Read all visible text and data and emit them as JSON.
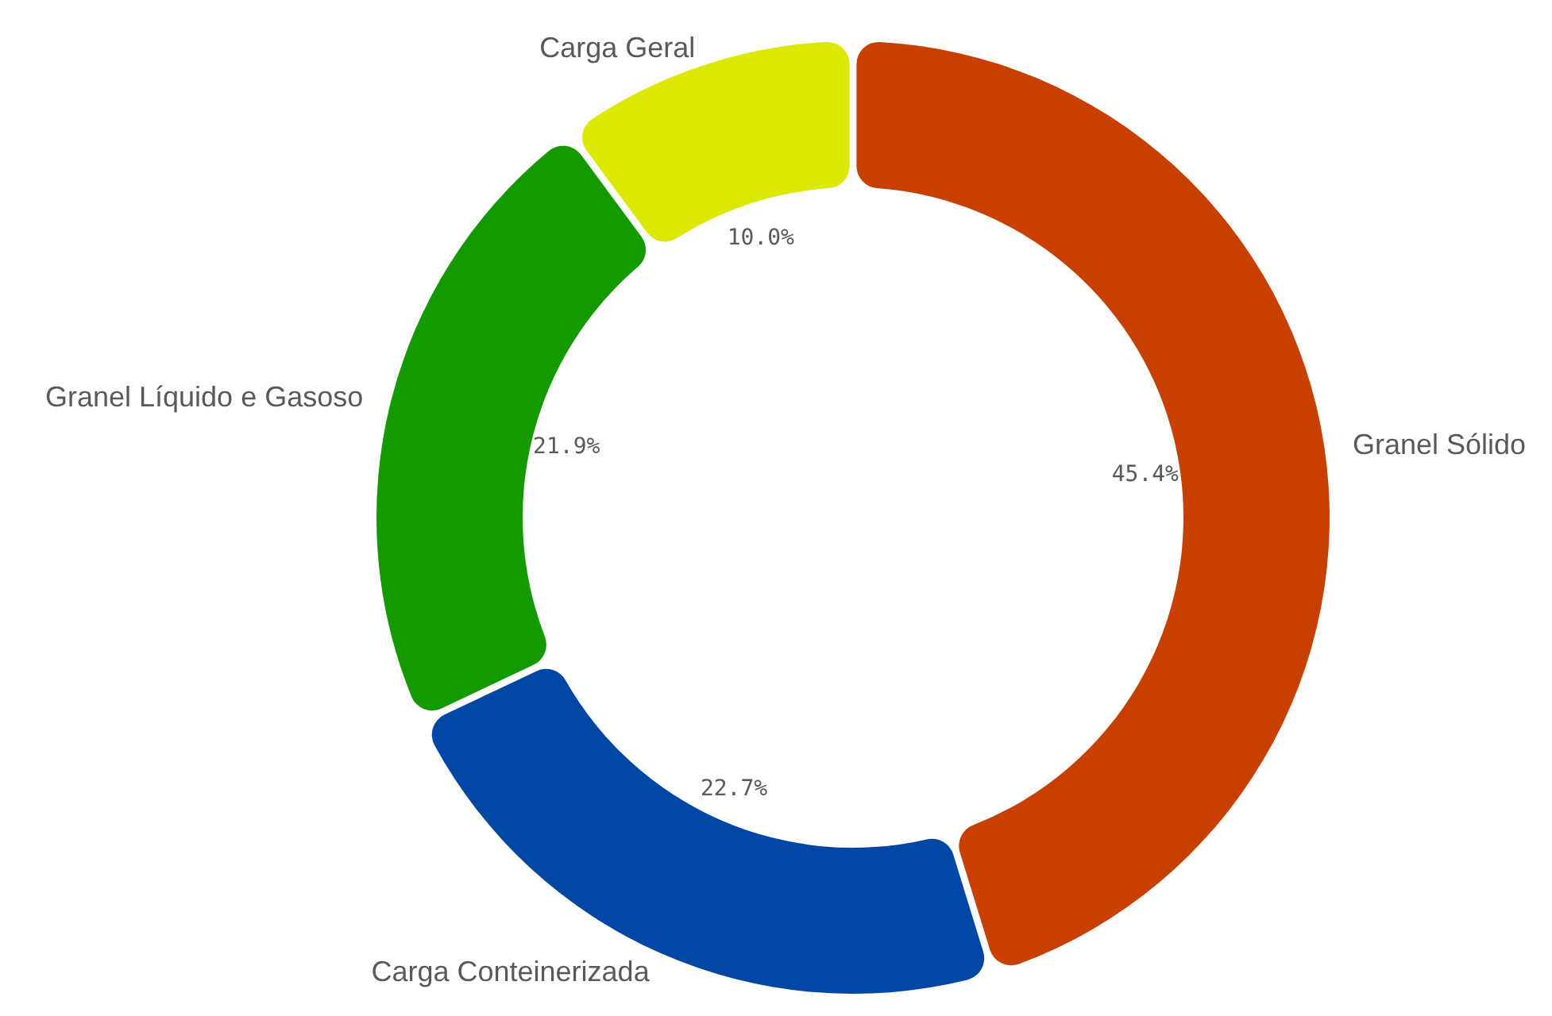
{
  "chart_data": {
    "type": "donut",
    "categories": [
      "Granel Sólido",
      "Carga Conteinerizada",
      "Granel Líquido e Gasoso",
      "Carga Geral"
    ],
    "values": [
      45.4,
      22.7,
      21.9,
      10.0
    ],
    "colors": [
      "#c84000",
      "#0047a5",
      "#149a00",
      "#dce800"
    ],
    "value_labels": [
      "45.4%",
      "22.7%",
      "21.9%",
      "10.0%"
    ]
  }
}
